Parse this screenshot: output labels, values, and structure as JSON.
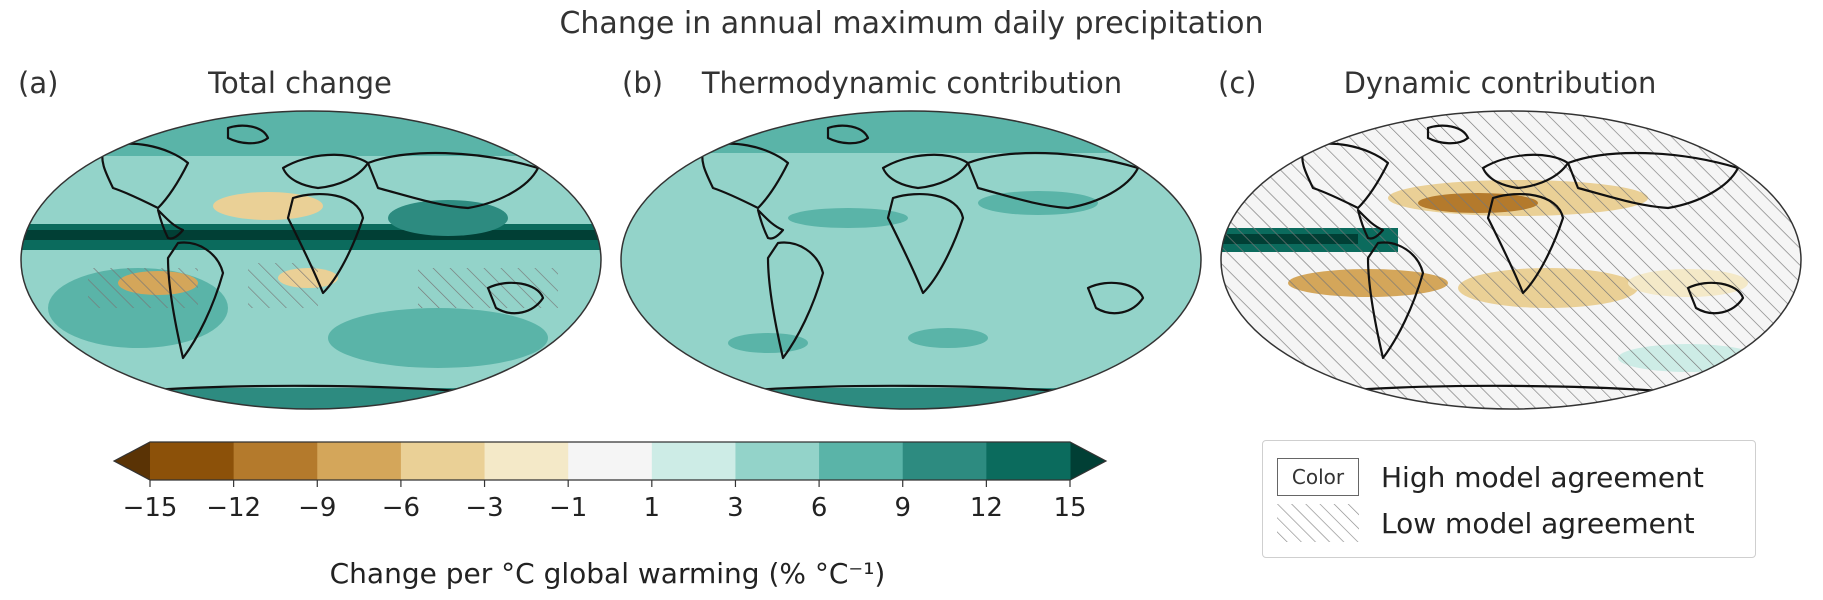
{
  "figure": {
    "title": "Change in annual maximum daily precipitation"
  },
  "panels": [
    {
      "letter": "(a)",
      "title": "Total change"
    },
    {
      "letter": "(b)",
      "title": "Thermodynamic contribution"
    },
    {
      "letter": "(c)",
      "title": "Dynamic contribution"
    }
  ],
  "colorbar": {
    "label": "Change per °C global warming (% °C⁻¹)",
    "ticks": [
      "−15",
      "−12",
      "−9",
      "−6",
      "−3",
      "−1",
      "1",
      "3",
      "6",
      "9",
      "12",
      "15"
    ],
    "colors": [
      "#8c5109",
      "#b47a2c",
      "#d4a65a",
      "#ead096",
      "#f4e9c8",
      "#f5f5f5",
      "#cdece6",
      "#93d3c9",
      "#5ab4a8",
      "#2d8b80",
      "#0b6b5d"
    ],
    "extend_low_color": "#5a3305",
    "extend_high_color": "#013f35"
  },
  "legend": {
    "items": [
      {
        "swatch_text": "Color",
        "label": "High model agreement"
      },
      {
        "swatch_text": "",
        "label": "Low model agreement"
      }
    ]
  }
}
